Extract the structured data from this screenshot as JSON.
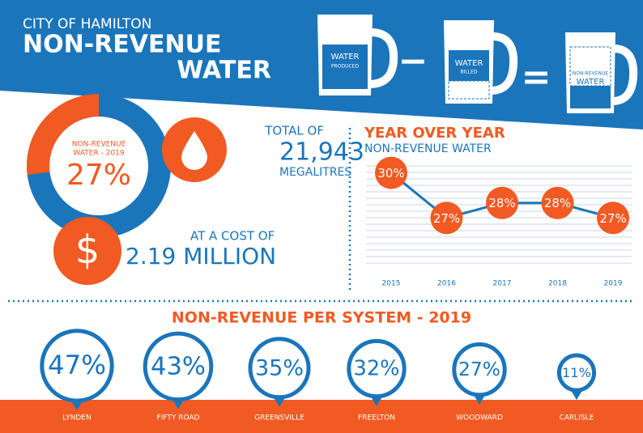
{
  "header": {
    "kicker": "CITY OF HAMILTON",
    "title_line1": "NON-REVENUE",
    "title_line2": "WATER"
  },
  "equation": {
    "produced": {
      "line1": "WATER",
      "line2": "PRODUCED"
    },
    "minus": "−",
    "billed": {
      "line1": "WATER",
      "line2": "BILLED"
    },
    "equals": "=",
    "result": {
      "line1": "NON-REVENUE",
      "line2": "WATER"
    }
  },
  "donut": {
    "label_line1": "NON-REVENUE",
    "label_line2": "WATER - 2019",
    "value": 27,
    "value_label": "27%"
  },
  "volume": {
    "intro": "TOTAL OF",
    "amount": "21,943",
    "unit": "MEGALITRES"
  },
  "cost": {
    "symbol": "$",
    "intro": "AT A COST OF",
    "amount": "2.19 MILLION"
  },
  "chart_data": {
    "type": "line",
    "title": "YEAR OVER YEAR",
    "subtitle": "NON-REVENUE WATER",
    "categories": [
      "2015",
      "2016",
      "2017",
      "2018",
      "2019"
    ],
    "values": [
      30,
      27,
      28,
      28,
      27
    ],
    "value_labels": [
      "30%",
      "27%",
      "28%",
      "28%",
      "27%"
    ],
    "ylim": [
      24,
      31
    ],
    "color": "#1b75bb",
    "marker_color": "#f15a22",
    "grid": true
  },
  "systems": {
    "title": "NON-REVENUE PER SYSTEM - 2019",
    "items": [
      {
        "name": "LYNDEN",
        "value": 47,
        "value_label": "47%"
      },
      {
        "name": "FIFTY ROAD",
        "value": 43,
        "value_label": "43%"
      },
      {
        "name": "GREENSVILLE",
        "value": 35,
        "value_label": "35%"
      },
      {
        "name": "FREELTON",
        "value": 32,
        "value_label": "32%"
      },
      {
        "name": "WOODWARD",
        "value": 27,
        "value_label": "27%"
      },
      {
        "name": "CARLISLE",
        "value": 11,
        "value_label": "11%"
      }
    ]
  }
}
